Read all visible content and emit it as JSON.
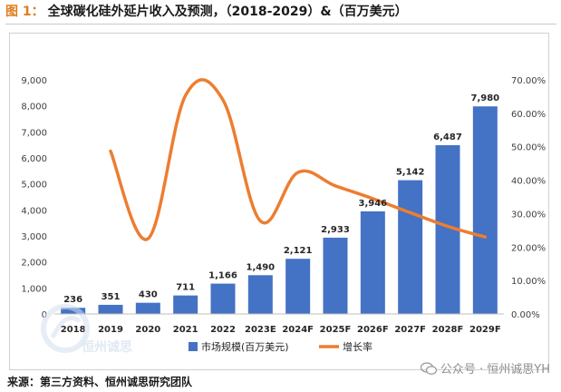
{
  "figure": {
    "label": "图 1：",
    "title": "全球碳化硅外延片收入及预测，（2018-2029）&（百万美元）"
  },
  "source": "来源：第三方资料、恒州诚思研究团队",
  "watermark": {
    "logo_text": "恒州诚思",
    "wechat_label": "公众号 · 恒州诚思YH",
    "icon": "wechat-icon"
  },
  "colors": {
    "bar": "#4472c4",
    "line": "#ed7d31"
  },
  "chart_data": {
    "type": "bar",
    "categories": [
      "2018",
      "2019",
      "2020",
      "2021",
      "2022",
      "2023E",
      "2024F",
      "2025F",
      "2026F",
      "2027F",
      "2028F",
      "2029F"
    ],
    "series": [
      {
        "name": "市场规模(百万美元)",
        "type": "bar",
        "axis": "left",
        "values": [
          236,
          351,
          430,
          711,
          1166,
          1490,
          2121,
          2933,
          3946,
          5142,
          6487,
          7980
        ]
      },
      {
        "name": "增长率",
        "type": "line",
        "axis": "right",
        "values": [
          null,
          48.7,
          22.5,
          65.3,
          64.0,
          27.8,
          42.3,
          38.3,
          34.5,
          30.3,
          26.2,
          23.0
        ]
      }
    ],
    "data_labels": [
      "236",
      "351",
      "430",
      "711",
      "1,166",
      "1,490",
      "2,121",
      "2,933",
      "3,946",
      "5,142",
      "6,487",
      "7,980"
    ],
    "y_left": {
      "min": 0,
      "max": 9000,
      "ticks": [
        "0",
        "1,000",
        "2,000",
        "3,000",
        "4,000",
        "5,000",
        "6,000",
        "7,000",
        "8,000",
        "9,000"
      ]
    },
    "y_right": {
      "min": 0,
      "max": 70,
      "ticks": [
        "0.00%",
        "10.00%",
        "20.00%",
        "30.00%",
        "40.00%",
        "50.00%",
        "60.00%",
        "70.00%"
      ]
    },
    "legend": {
      "position": "bottom",
      "entries": [
        "市场规模(百万美元)",
        "增长率"
      ]
    },
    "grid": false
  }
}
